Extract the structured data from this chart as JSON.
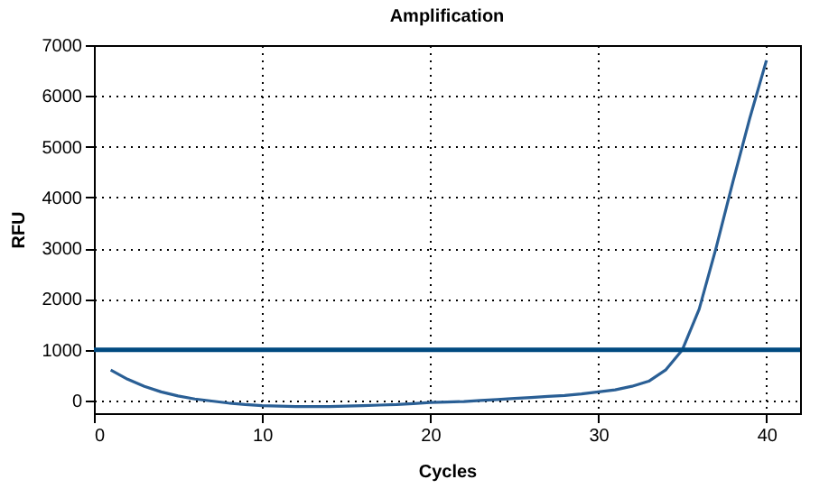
{
  "chart_data": {
    "type": "line",
    "title": "Amplification",
    "xlabel": "Cycles",
    "ylabel": "RFU",
    "x": [
      1,
      2,
      3,
      4,
      5,
      6,
      7,
      8,
      9,
      10,
      11,
      12,
      13,
      14,
      15,
      16,
      17,
      18,
      19,
      20,
      21,
      22,
      23,
      24,
      25,
      26,
      27,
      28,
      29,
      30,
      31,
      32,
      33,
      34,
      35,
      36,
      37,
      38,
      39,
      40
    ],
    "series": [
      {
        "color": "#2a5f95",
        "values": [
          600,
          420,
          280,
          170,
          90,
          30,
          -10,
          -50,
          -80,
          -100,
          -110,
          -120,
          -120,
          -120,
          -110,
          -100,
          -90,
          -80,
          -60,
          -40,
          -30,
          -20,
          0,
          20,
          40,
          60,
          80,
          100,
          130,
          170,
          210,
          280,
          380,
          600,
          1000,
          1800,
          3000,
          4300,
          5550,
          6700
        ]
      }
    ],
    "xlim": [
      0,
      42
    ],
    "xticks": [
      0,
      10,
      20,
      30,
      40
    ],
    "ylim": [
      -250,
      7000
    ],
    "yticks": [
      0,
      1000,
      2000,
      3000,
      4000,
      5000,
      6000,
      7000
    ],
    "ref_lines": [
      {
        "axis": "y",
        "value": 1000,
        "color": "#004a80"
      }
    ],
    "grid": true,
    "line_style": "solid"
  }
}
